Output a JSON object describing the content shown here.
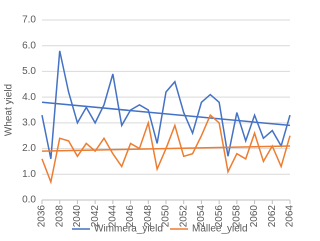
{
  "chart_data": {
    "type": "line",
    "y_label": "Wheat yield",
    "x": [
      2036,
      2037,
      2038,
      2039,
      2040,
      2041,
      2042,
      2043,
      2044,
      2045,
      2046,
      2047,
      2048,
      2049,
      2050,
      2051,
      2052,
      2053,
      2054,
      2055,
      2056,
      2057,
      2058,
      2059,
      2060,
      2061,
      2062,
      2063,
      2064
    ],
    "xlim": [
      2036,
      2064
    ],
    "xticks": [
      2036,
      2038,
      2040,
      2042,
      2044,
      2046,
      2048,
      2050,
      2052,
      2054,
      2056,
      2058,
      2060,
      2062,
      2064
    ],
    "ylim": [
      0,
      7
    ],
    "yticks": [
      {
        "value": 0,
        "label": "0.0"
      },
      {
        "value": 1,
        "label": "1.0"
      },
      {
        "value": 2,
        "label": "2.0"
      },
      {
        "value": 3,
        "label": "3.0"
      },
      {
        "value": 4,
        "label": "4.0"
      },
      {
        "value": 5,
        "label": "5.0"
      },
      {
        "value": 6,
        "label": "6.0"
      },
      {
        "value": 7,
        "label": "7.0"
      }
    ],
    "grid": true,
    "legend": "bottom",
    "series": [
      {
        "name": "Wimmera_yield",
        "color": "#4472c4",
        "values": [
          3.3,
          1.6,
          5.8,
          4.2,
          3.0,
          3.6,
          3.0,
          3.7,
          4.9,
          2.9,
          3.5,
          3.7,
          3.5,
          2.2,
          4.2,
          4.6,
          3.4,
          2.6,
          3.8,
          4.1,
          3.8,
          1.7,
          3.4,
          2.3,
          3.3,
          2.4,
          2.7,
          2.1,
          3.3
        ],
        "trend": [
          3.8,
          2.9
        ]
      },
      {
        "name": "Mallee_yield",
        "color": "#ed7d31",
        "values": [
          1.6,
          0.7,
          2.4,
          2.3,
          1.7,
          2.2,
          1.9,
          2.4,
          1.8,
          1.3,
          2.2,
          2.0,
          3.0,
          1.2,
          2.0,
          2.9,
          1.7,
          1.8,
          2.5,
          3.3,
          3.0,
          1.1,
          1.8,
          1.6,
          2.6,
          1.5,
          2.1,
          1.3,
          2.5
        ],
        "trend": [
          1.9,
          2.1
        ]
      }
    ]
  }
}
